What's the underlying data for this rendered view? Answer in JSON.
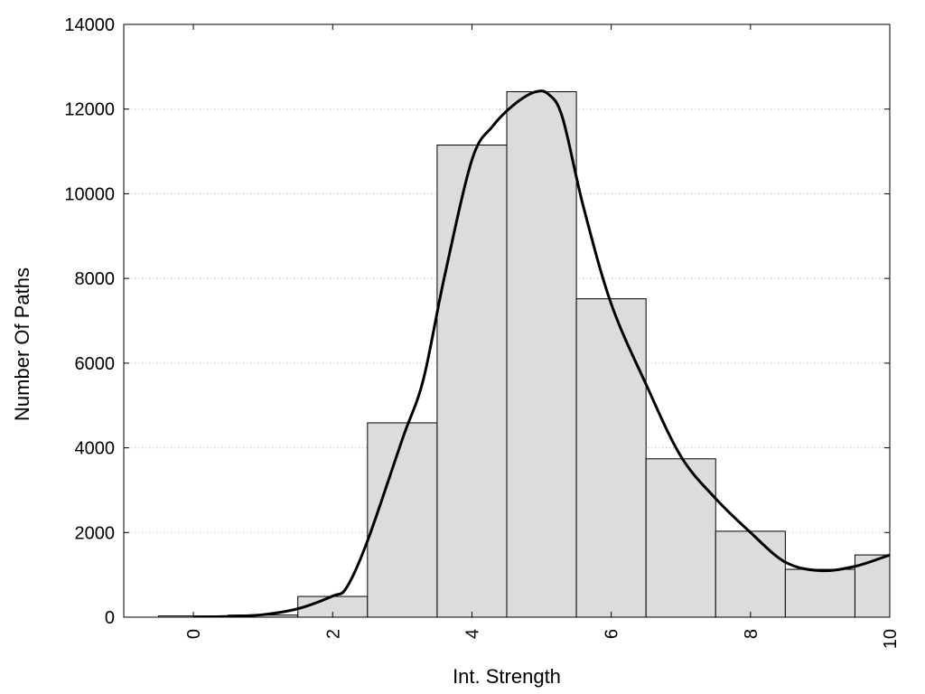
{
  "chart_data": {
    "type": "bar",
    "title": "",
    "xlabel": "Int. Strength",
    "ylabel": "Number Of Paths",
    "xlim": [
      -1,
      10
    ],
    "ylim": [
      0,
      14000
    ],
    "x_ticks": [
      0,
      2,
      4,
      6,
      8,
      10
    ],
    "y_ticks": [
      0,
      2000,
      4000,
      6000,
      8000,
      10000,
      12000,
      14000
    ],
    "grid": "horizontal dotted",
    "bar_width": 1,
    "bar_color": "#dcdcdc",
    "line_color": "#000000",
    "bars": [
      {
        "x": 0,
        "value": 30
      },
      {
        "x": 1,
        "value": 50
      },
      {
        "x": 2,
        "value": 490
      },
      {
        "x": 3,
        "value": 4590
      },
      {
        "x": 4,
        "value": 11150
      },
      {
        "x": 5,
        "value": 12410
      },
      {
        "x": 6,
        "value": 7520
      },
      {
        "x": 7,
        "value": 3740
      },
      {
        "x": 8,
        "value": 2030
      },
      {
        "x": 9,
        "value": 1130
      },
      {
        "x": 10,
        "value": 1470
      }
    ],
    "curve": {
      "x": [
        0,
        0.5,
        1,
        1.5,
        2,
        2.2,
        2.5,
        3,
        3.3,
        3.6,
        4,
        4.3,
        4.6,
        4.9,
        5.1,
        5.3,
        5.6,
        6,
        6.5,
        7,
        7.5,
        8,
        8.5,
        9,
        9.5,
        10
      ],
      "y": [
        0,
        20,
        60,
        200,
        500,
        700,
        1800,
        4200,
        5600,
        8000,
        10800,
        11600,
        12100,
        12400,
        12350,
        11800,
        9700,
        7400,
        5500,
        3800,
        2800,
        2000,
        1300,
        1100,
        1200,
        1470
      ]
    }
  }
}
